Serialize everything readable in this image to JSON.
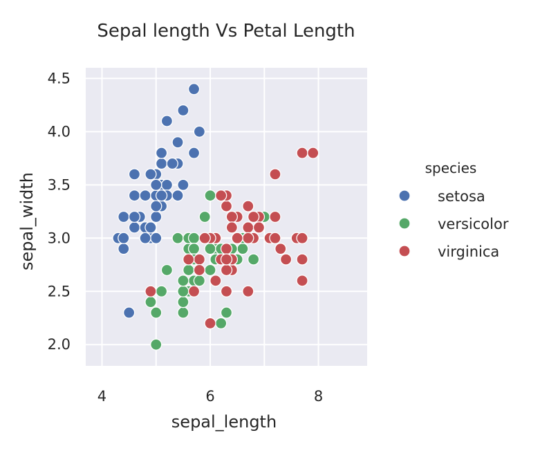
{
  "chart_data": {
    "type": "scatter",
    "title": "Sepal length Vs Petal Length",
    "xlabel": "sepal_length",
    "ylabel": "sepal_width",
    "xlim": [
      3.7,
      8.9
    ],
    "ylim": [
      1.8,
      4.6
    ],
    "xticks": [
      4,
      6,
      8
    ],
    "yticks": [
      2.0,
      2.5,
      3.0,
      3.5,
      4.0,
      4.5
    ],
    "grid": true,
    "background": "#eaeaf2",
    "legend": {
      "title": "species",
      "placement": "right"
    },
    "series": [
      {
        "name": "setosa",
        "color": "#4c72b0",
        "x": [
          5.1,
          4.9,
          4.7,
          4.6,
          5.0,
          5.4,
          4.6,
          5.0,
          4.4,
          4.9,
          5.4,
          4.8,
          4.8,
          4.3,
          5.8,
          5.7,
          5.4,
          5.1,
          5.7,
          5.1,
          5.4,
          5.1,
          4.6,
          5.1,
          4.8,
          5.0,
          5.0,
          5.2,
          5.2,
          4.7,
          4.8,
          5.4,
          5.2,
          5.5,
          4.9,
          5.0,
          5.5,
          4.9,
          4.4,
          5.1,
          5.0,
          4.5,
          4.4,
          5.0,
          5.1,
          4.8,
          5.1,
          4.6,
          5.3,
          5.0
        ],
        "y": [
          3.5,
          3.0,
          3.2,
          3.1,
          3.6,
          3.9,
          3.4,
          3.4,
          2.9,
          3.1,
          3.7,
          3.4,
          3.0,
          3.0,
          4.0,
          4.4,
          3.9,
          3.5,
          3.8,
          3.8,
          3.4,
          3.7,
          3.6,
          3.3,
          3.4,
          3.0,
          3.4,
          3.5,
          3.4,
          3.2,
          3.1,
          3.4,
          4.1,
          4.2,
          3.1,
          3.2,
          3.5,
          3.6,
          3.0,
          3.4,
          3.5,
          2.3,
          3.2,
          3.5,
          3.8,
          3.0,
          3.8,
          3.2,
          3.7,
          3.3
        ]
      },
      {
        "name": "versicolor",
        "color": "#55a868",
        "x": [
          7.0,
          6.4,
          6.9,
          5.5,
          6.5,
          5.7,
          6.3,
          4.9,
          6.6,
          5.2,
          5.0,
          5.9,
          6.0,
          6.1,
          5.6,
          6.7,
          5.6,
          5.8,
          6.2,
          5.6,
          5.9,
          6.1,
          6.3,
          6.1,
          6.4,
          6.6,
          6.8,
          6.7,
          6.0,
          5.7,
          5.5,
          5.5,
          5.8,
          6.0,
          5.4,
          6.0,
          6.7,
          6.3,
          5.6,
          5.5,
          5.5,
          6.1,
          5.8,
          5.0,
          5.6,
          5.7,
          5.7,
          6.2,
          5.1,
          5.7
        ],
        "y": [
          3.2,
          3.2,
          3.1,
          2.3,
          2.8,
          2.8,
          3.3,
          2.4,
          2.9,
          2.7,
          2.0,
          3.0,
          2.2,
          2.9,
          2.9,
          3.1,
          3.0,
          2.7,
          2.2,
          2.5,
          3.2,
          2.8,
          2.5,
          2.8,
          2.9,
          3.0,
          2.8,
          3.0,
          2.9,
          2.6,
          2.4,
          2.4,
          2.7,
          2.7,
          3.0,
          3.4,
          3.1,
          2.3,
          3.0,
          2.5,
          2.6,
          3.0,
          2.6,
          2.3,
          2.7,
          3.0,
          2.9,
          2.9,
          2.5,
          2.8
        ]
      },
      {
        "name": "virginica",
        "color": "#c44e52",
        "x": [
          6.3,
          5.8,
          7.1,
          6.3,
          6.5,
          7.6,
          4.9,
          7.3,
          6.7,
          7.2,
          6.5,
          6.4,
          6.8,
          5.7,
          5.8,
          6.4,
          6.5,
          7.7,
          7.7,
          6.0,
          6.9,
          5.6,
          7.7,
          6.3,
          6.7,
          7.2,
          6.2,
          6.1,
          6.4,
          7.2,
          7.4,
          7.9,
          6.4,
          6.3,
          6.1,
          7.7,
          6.3,
          6.4,
          6.0,
          6.9,
          6.7,
          6.9,
          5.8,
          6.8,
          6.7,
          6.7,
          6.3,
          6.5,
          6.2,
          5.9
        ],
        "y": [
          3.3,
          2.7,
          3.0,
          2.9,
          3.0,
          3.0,
          2.5,
          2.9,
          2.5,
          3.6,
          3.2,
          2.7,
          3.0,
          2.5,
          2.8,
          3.2,
          3.0,
          3.8,
          2.6,
          2.2,
          3.2,
          2.8,
          2.8,
          2.7,
          3.3,
          3.2,
          2.8,
          3.0,
          2.8,
          3.0,
          2.8,
          3.8,
          2.8,
          2.8,
          2.6,
          3.0,
          3.4,
          3.1,
          3.0,
          3.1,
          3.1,
          3.1,
          2.7,
          3.2,
          3.3,
          3.0,
          2.5,
          3.0,
          3.4,
          3.0
        ]
      }
    ]
  }
}
